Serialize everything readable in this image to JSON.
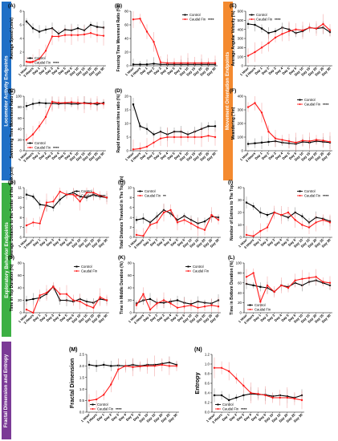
{
  "colors": {
    "control": "#000000",
    "caudal": "#ff1a1a",
    "blue": "#1f6fc6",
    "orange": "#f48a2f",
    "green": "#3cb044",
    "purple": "#7b3a96"
  },
  "section_labels": [
    {
      "text": "Locomotor Activity Endpoints",
      "color": "#1f6fc6"
    },
    {
      "text": "Movement Orientation Endpoints",
      "color": "#f48a2f"
    },
    {
      "text": "Exploratory Behavior Endpoints",
      "color": "#3cb044"
    },
    {
      "text": "Fractal Dimension and Entropy",
      "color": "#7b3a96"
    }
  ],
  "chart_data": [
    {
      "type": "line",
      "panel": "(A)",
      "ylabel": "Average Speed (cm/s)",
      "ylim": [
        0,
        8
      ],
      "yticks": [
        0,
        2,
        4,
        6,
        8
      ],
      "categories": [
        "1 Hour",
        "3 Hours",
        "Day 1",
        "Day 2",
        "Day 3",
        "Day 4",
        "Day 5",
        "Day 6",
        "Day 10",
        "Day 15",
        "Day 20",
        "Day 25",
        "Day 30"
      ],
      "series": [
        {
          "name": "Control",
          "values": [
            6.5,
            5.5,
            5.0,
            5.3,
            5.5,
            4.7,
            5.3,
            5.2,
            5.5,
            5.2,
            6.0,
            5.7,
            5.6
          ]
        },
        {
          "name": "Caudal Fin",
          "values": [
            0.6,
            0.6,
            1.0,
            2.2,
            4.3,
            4.3,
            4.5,
            4.5,
            4.5,
            4.6,
            4.8,
            4.5,
            4.4
          ]
        }
      ],
      "legend": "bottom",
      "stars": "****"
    },
    {
      "type": "line",
      "panel": "(B)",
      "ylabel": "Freezing Time Movement Ratio (%)",
      "ylim": [
        0,
        80
      ],
      "yticks": [
        0,
        20,
        40,
        60,
        80
      ],
      "categories": [
        "1 Hour",
        "3 Hours",
        "Day 1",
        "Day 2",
        "Day 3",
        "Day 4",
        "Day 5",
        "Day 6",
        "Day 10",
        "Day 15",
        "Day 20",
        "Day 25",
        "Day 30"
      ],
      "series": [
        {
          "name": "Control",
          "values": [
            2,
            2,
            2,
            3,
            2,
            2,
            2,
            2,
            2,
            2,
            2,
            2,
            2
          ]
        },
        {
          "name": "Caudal Fin",
          "values": [
            68,
            69,
            50,
            35,
            5,
            4,
            4,
            4,
            4,
            4,
            4,
            4,
            4
          ]
        }
      ],
      "legend": "top-right",
      "stars": "****"
    },
    {
      "type": "line",
      "panel": "(C)",
      "ylabel": "Swimming Time Movement Ratio (%)",
      "ylim": [
        0,
        100
      ],
      "yticks": [
        0,
        20,
        40,
        60,
        80,
        100
      ],
      "categories": [
        "1 Hour",
        "3 Hours",
        "Day 1",
        "Day 2",
        "Day 3",
        "Day 4",
        "Day 5",
        "Day 6",
        "Day 10",
        "Day 15",
        "Day 20",
        "Day 25",
        "Day 30"
      ],
      "series": [
        {
          "name": "Control",
          "values": [
            82,
            86,
            88,
            87,
            87,
            86,
            87,
            86,
            86,
            88,
            87,
            85,
            88
          ]
        },
        {
          "name": "Caudal Fin",
          "values": [
            20,
            30,
            45,
            62,
            90,
            88,
            88,
            89,
            88,
            87,
            86,
            88,
            86
          ]
        }
      ],
      "legend": "bottom",
      "stars": "****"
    },
    {
      "type": "line",
      "panel": "(D)",
      "ylabel": "Rapid movement time ratio (%)",
      "ylim": [
        0,
        20
      ],
      "yticks": [
        0,
        5,
        10,
        15,
        20
      ],
      "categories": [
        "1 Hour",
        "3 Hours",
        "Day 1",
        "Day 2",
        "Day 3",
        "Day 4",
        "Day 5",
        "Day 6",
        "Day 10",
        "Day 15",
        "Day 20",
        "Day 25",
        "Day 30"
      ],
      "series": [
        {
          "name": "Control",
          "values": [
            17,
            9,
            8,
            6,
            7,
            6,
            7,
            7,
            6,
            7,
            8,
            9,
            9
          ]
        },
        {
          "name": "Caudal Fin",
          "values": [
            0.5,
            0.8,
            1.5,
            3,
            4.5,
            5,
            5,
            5,
            5,
            5,
            5,
            5.5,
            5
          ]
        }
      ],
      "legend": "none",
      "stars": ""
    },
    {
      "type": "line",
      "panel": "(E)",
      "ylabel": "Average Angular Velocity (%)",
      "ylim": [
        0,
        600
      ],
      "yticks": [
        0,
        100,
        200,
        300,
        400,
        500,
        600
      ],
      "categories": [
        "1 Hour",
        "3 Hours",
        "Day 1",
        "Day 2",
        "Day 3",
        "Day 4",
        "Day 5",
        "Day 6",
        "Day 10",
        "Day 15",
        "Day 20",
        "Day 25",
        "Day 30"
      ],
      "series": [
        {
          "name": "Control",
          "values": [
            460,
            450,
            410,
            360,
            380,
            420,
            400,
            360,
            380,
            420,
            410,
            420,
            370
          ]
        },
        {
          "name": "Caudal Fin",
          "values": [
            110,
            150,
            200,
            250,
            310,
            350,
            380,
            400,
            390,
            420,
            410,
            460,
            390
          ]
        }
      ],
      "legend": "top-left",
      "stars": "****"
    },
    {
      "type": "line",
      "panel": "(F)",
      "ylabel": "Meandering (°/m)",
      "ylim": [
        0,
        400
      ],
      "yticks": [
        0,
        100,
        200,
        300,
        400
      ],
      "categories": [
        "1 Hour",
        "3 Hours",
        "Day 1",
        "Day 2",
        "Day 3",
        "Day 4",
        "Day 5",
        "Day 6",
        "Day 10",
        "Day 15",
        "Day 20",
        "Day 25",
        "Day 30"
      ],
      "series": [
        {
          "name": "Control",
          "values": [
            50,
            55,
            60,
            65,
            70,
            60,
            55,
            50,
            65,
            60,
            70,
            65,
            60
          ]
        },
        {
          "name": "Caudal Fin",
          "values": [
            320,
            350,
            280,
            140,
            90,
            80,
            70,
            60,
            75,
            70,
            80,
            75,
            65
          ]
        }
      ],
      "legend": "top-right",
      "stars": "****"
    },
    {
      "type": "line",
      "panel": "(G)",
      "ylabel": "Average Distance to the Center of the Tank (cm)",
      "ylim": [
        6,
        11
      ],
      "yticks": [
        6,
        7,
        8,
        9,
        10,
        11
      ],
      "categories": [
        "1 Hour",
        "3 Hours",
        "Day 1",
        "Day 2",
        "Day 3",
        "Day 4",
        "Day 5",
        "Day 6",
        "Day 10",
        "Day 15",
        "Day 20",
        "Day 25",
        "Day 30"
      ],
      "series": [
        {
          "name": "Control",
          "values": [
            10.3,
            10.1,
            9.3,
            9.2,
            9.0,
            9.8,
            10.3,
            10.5,
            10.1,
            10.0,
            10.3,
            10.1,
            10.0
          ]
        },
        {
          "name": "Caudal Fin",
          "values": [
            7.2,
            7.5,
            7.4,
            9.5,
            9.6,
            10.6,
            10.3,
            10.3,
            9.6,
            10.5,
            10.5,
            10.2,
            10.0
          ]
        }
      ],
      "legend": "top-right",
      "stars": "****"
    },
    {
      "type": "line",
      "panel": "(H)",
      "ylabel": "Total Distance Traveled in The Top (m)",
      "ylim": [
        0,
        10
      ],
      "yticks": [
        0,
        2,
        4,
        6,
        8,
        10
      ],
      "categories": [
        "1 Hour",
        "3 Hours",
        "Day 1",
        "Day 2",
        "Day 3",
        "Day 4",
        "Day 5",
        "Day 6",
        "Day 10",
        "Day 15",
        "Day 20",
        "Day 25",
        "Day 30"
      ],
      "series": [
        {
          "name": "Control",
          "values": [
            3.5,
            3.8,
            3.0,
            4.2,
            5.5,
            4.8,
            3.5,
            4.3,
            3.5,
            2.8,
            3.2,
            4.2,
            4.0
          ]
        },
        {
          "name": "Caudal Fin",
          "values": [
            0.5,
            0.3,
            2.5,
            3.0,
            5.0,
            5.5,
            3.0,
            3.5,
            2.8,
            2.0,
            1.5,
            4.5,
            3.5
          ]
        }
      ],
      "legend": "top-left",
      "stars": "**"
    },
    {
      "type": "line",
      "panel": "(I)",
      "ylabel": "Number of Entries to The Top",
      "ylim": [
        0,
        40
      ],
      "yticks": [
        0,
        10,
        20,
        30,
        40
      ],
      "categories": [
        "1 Hour",
        "3 Hours",
        "Day 1",
        "Day 2",
        "Day 3",
        "Day 4",
        "Day 5",
        "Day 6",
        "Day 10",
        "Day 15",
        "Day 20",
        "Day 25",
        "Day 30"
      ],
      "series": [
        {
          "name": "Control",
          "values": [
            28,
            25,
            20,
            18,
            20,
            18,
            16,
            20,
            17,
            12,
            16,
            15,
            13
          ]
        },
        {
          "name": "Caudal Fin",
          "values": [
            2,
            1,
            5,
            8,
            20,
            18,
            20,
            14,
            10,
            8,
            12,
            14,
            12
          ]
        }
      ],
      "legend": "top-right",
      "stars": "****"
    },
    {
      "type": "line",
      "panel": "(J)",
      "ylabel": "Time in Top Duration (%)",
      "ylim": [
        0,
        80
      ],
      "yticks": [
        0,
        20,
        40,
        60,
        80
      ],
      "categories": [
        "1 Hour",
        "3 Hours",
        "Day 1",
        "Day 2",
        "Day 3",
        "Day 4",
        "Day 5",
        "Day 6",
        "Day 10",
        "Day 15",
        "Day 20",
        "Day 25",
        "Day 30"
      ],
      "series": [
        {
          "name": "Control",
          "values": [
            20,
            22,
            24,
            30,
            42,
            20,
            20,
            18,
            22,
            18,
            16,
            22,
            20
          ]
        },
        {
          "name": "Caudal Fin",
          "values": [
            5,
            0,
            28,
            32,
            42,
            30,
            30,
            20,
            18,
            12,
            8,
            25,
            20
          ]
        }
      ],
      "legend": "top-right",
      "stars": ""
    },
    {
      "type": "line",
      "panel": "(K)",
      "ylabel": "Time in Middle Duration (%)",
      "ylim": [
        0,
        80
      ],
      "yticks": [
        0,
        20,
        40,
        60,
        80
      ],
      "categories": [
        "1 Hour",
        "3 Hours",
        "Day 1",
        "Day 2",
        "Day 3",
        "Day 4",
        "Day 5",
        "Day 6",
        "Day 10",
        "Day 15",
        "Day 20",
        "Day 25",
        "Day 30"
      ],
      "series": [
        {
          "name": "Control",
          "values": [
            15,
            20,
            22,
            16,
            16,
            18,
            20,
            16,
            14,
            18,
            16,
            15,
            20
          ]
        },
        {
          "name": "Caudal Fin",
          "values": [
            12,
            30,
            5,
            15,
            20,
            15,
            8,
            10,
            12,
            8,
            10,
            12,
            10
          ]
        }
      ],
      "legend": "top-right",
      "stars": ""
    },
    {
      "type": "line",
      "panel": "(L)",
      "ylabel": "Time in Bottom Duration (%)",
      "ylim": [
        0,
        100
      ],
      "yticks": [
        0,
        20,
        40,
        60,
        80,
        100
      ],
      "categories": [
        "1 Hour",
        "3 Hours",
        "Day 1",
        "Day 2",
        "Day 3",
        "Day 4",
        "Day 5",
        "Day 6",
        "Day 10",
        "Day 15",
        "Day 20",
        "Day 25",
        "Day 30"
      ],
      "series": [
        {
          "name": "Control",
          "values": [
            58,
            55,
            52,
            50,
            42,
            55,
            52,
            60,
            55,
            62,
            65,
            60,
            55
          ]
        },
        {
          "name": "Caudal Fin",
          "values": [
            72,
            80,
            22,
            55,
            42,
            55,
            50,
            65,
            68,
            70,
            72,
            62,
            60
          ]
        }
      ],
      "legend": "bottom",
      "stars": ""
    },
    {
      "type": "line",
      "panel": "(M)",
      "ylabel": "Fractal Dimension",
      "ylim": [
        0.0,
        2.5
      ],
      "yticks": [
        0.0,
        0.5,
        1.0,
        1.5,
        2.0,
        2.5
      ],
      "categories": [
        "1 Hour",
        "3 Hours",
        "Day 1",
        "Day 2",
        "Day 3",
        "Day 4",
        "Day 5",
        "Day 6",
        "Day 10",
        "Day 15",
        "Day 20",
        "Day 25",
        "Day 30"
      ],
      "series": [
        {
          "name": "Control",
          "values": [
            2.05,
            2.0,
            2.05,
            2.0,
            2.02,
            2.0,
            2.05,
            2.0,
            2.05,
            2.05,
            2.1,
            2.15,
            2.05
          ]
        },
        {
          "name": "Caudal Fin",
          "values": [
            0.5,
            0.55,
            0.75,
            1.2,
            1.85,
            2.0,
            1.95,
            1.98,
            2.0,
            2.0,
            2.05,
            2.0,
            2.0
          ]
        }
      ],
      "legend": "bottom",
      "stars": "****"
    },
    {
      "type": "line",
      "panel": "(N)",
      "ylabel": "Entropy",
      "ylim": [
        0.0,
        1.2
      ],
      "yticks": [
        0.0,
        0.2,
        0.4,
        0.6,
        0.8,
        1.0,
        1.2
      ],
      "categories": [
        "1 Hour",
        "3 Hours",
        "Day 1",
        "Day 2",
        "Day 3",
        "Day 4",
        "Day 5",
        "Day 6",
        "Day 10",
        "Day 15",
        "Day 20",
        "Day 25",
        "Day 30"
      ],
      "series": [
        {
          "name": "Control",
          "values": [
            0.35,
            0.35,
            0.25,
            0.3,
            0.35,
            0.38,
            0.37,
            0.36,
            0.33,
            0.35,
            0.33,
            0.3,
            0.35
          ]
        },
        {
          "name": "Caudal Fin",
          "values": [
            0.92,
            0.92,
            0.85,
            0.7,
            0.55,
            0.4,
            0.38,
            0.35,
            0.3,
            0.3,
            0.3,
            0.28,
            0.25
          ]
        }
      ],
      "legend": "bottom",
      "stars": "****"
    }
  ]
}
